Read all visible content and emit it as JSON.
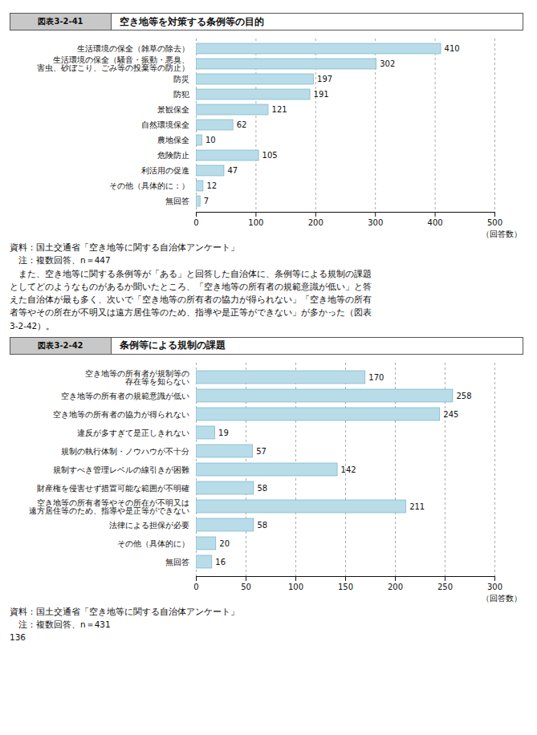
{
  "chart_data": [
    {
      "type": "bar",
      "orientation": "horizontal",
      "subtitle": "図表3-2-41",
      "title": "空き地等を対策する条例等の目的",
      "categories": [
        "生活環境の保全（雑草の除去）",
        "生活環境の保全（騒音・振動・悪臭、\n害虫、砂ぼこり、ごみ等の投棄等の防止）",
        "防災",
        "防犯",
        "景観保全",
        "自然環境保全",
        "農地保全",
        "危険防止",
        "利活用の促進",
        "その他（具体的に：）",
        "無回答"
      ],
      "values": [
        410,
        302,
        197,
        191,
        121,
        62,
        10,
        105,
        47,
        12,
        7
      ],
      "color": "#b8dce8",
      "xlim": [
        0,
        500
      ],
      "xticks": [
        0,
        100,
        200,
        300,
        400,
        500
      ],
      "xlabel": "（回答数）",
      "grid": true,
      "data_labels": true,
      "annotations": [
        "資料：国土交通省「空き地等に関する自治体アンケート」",
        "　注：複数回答、n＝447",
        "　また、空き地等に関する条例等が「ある」と回答した自治体に、条例等による規制の課題",
        "としてどのようなものがあるか聞いたところ、「空き地等の所有者の規範意識が低い」と答",
        "えた自治体が最も多く、次いで「空き地等の所有者の協力が得られない」「空き地等の所有",
        "者等やその所在が不明又は遠方居住等のため、指導や是正等ができない」が多かった（図表",
        "3-2-42）。"
      ]
    },
    {
      "type": "bar",
      "orientation": "horizontal",
      "subtitle": "図表3-2-42",
      "title": "条例等による規制の課題",
      "categories": [
        "空き地等の所有者が規制等の\n存在等を知らない",
        "空き地等の所有者の規範意識が低い",
        "空き地等の所有者の協力が得られない",
        "違反が多すぎて是正しきれない",
        "規制の執行体制・ノウハウが不十分",
        "規制すべき管理レベルの線引きが困難",
        "財産権を侵害せず措置可能な範囲が不明確",
        "空き地等の所有者等やその所在が不明又は\n遠方居住等のため、指導や是正等ができない",
        "法律による担保が必要",
        "その他（具体的に）",
        "無回答"
      ],
      "values": [
        170,
        258,
        245,
        19,
        57,
        142,
        58,
        211,
        58,
        20,
        16
      ],
      "color": "#b8dce8",
      "xlim": [
        0,
        300
      ],
      "xticks": [
        0,
        50,
        100,
        150,
        200,
        250,
        300
      ],
      "xlabel": "（回答数）",
      "grid": true,
      "data_labels": true,
      "annotations": [
        "資料：国土交通省「空き地等に関する自治体アンケート」",
        "　注：複数回答、n＝431",
        "136"
      ]
    }
  ]
}
